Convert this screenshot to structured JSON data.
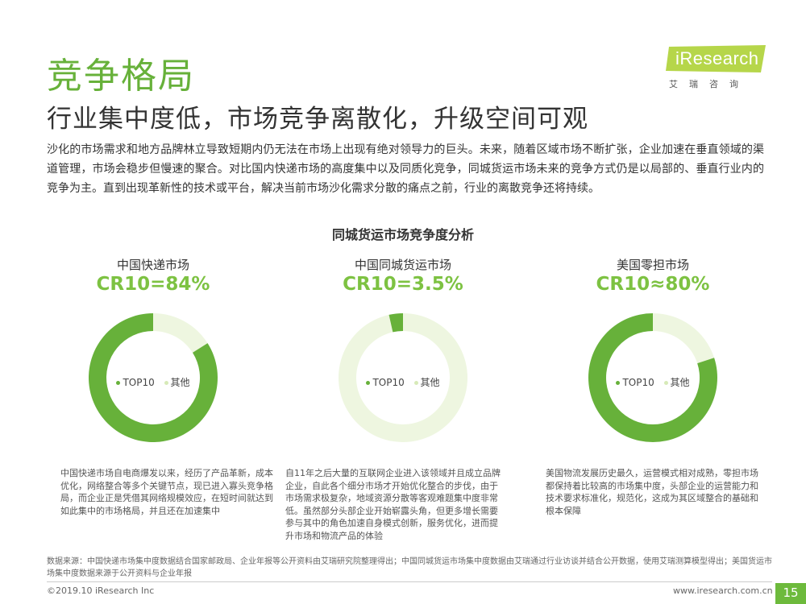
{
  "header": {
    "section_title": "竞争格局",
    "subtitle": "行业集中度低，市场竞争离散化，升级空间可观"
  },
  "logo": {
    "wordmark": "iResearch",
    "cn_name": "艾瑞咨询"
  },
  "intro": "沙化的市场需求和地方品牌林立导致短期内仍无法在市场上出现有绝对领导力的巨头。未来，随着区域市场不断扩张，企业加速在垂直领域的渠道管理，市场会稳步但慢速的聚合。对比国内快递市场的高度集中以及同质化竞争，同城货运市场未来的竞争方式仍是以局部的、垂直行业内的竞争为主。直到出现革新性的技术或平台，解决当前市场沙化需求分散的痛点之前，行业的离散竞争还将持续。",
  "chart_data": {
    "type": "pie",
    "title": "同城货运市场竞争度分析",
    "legend": [
      "TOP10",
      "其他"
    ],
    "colors": {
      "top10": "#67b13a",
      "others": "#eef6e0"
    },
    "charts": [
      {
        "name": "中国快递市场",
        "cr_label": "CR10=84%",
        "slices": [
          {
            "label": "TOP10",
            "value": 84
          },
          {
            "label": "其他",
            "value": 16
          }
        ],
        "note": "中国快递市场自电商爆发以来，经历了产品革新，成本优化，网络整合等多个关键节点，现已进入寡头竞争格局，而企业正是凭借其网络规模效应，在短时间就达到如此集中的市场格局，并且还在加速集中"
      },
      {
        "name": "中国同城货运市场",
        "cr_label": "CR10=3.5%",
        "slices": [
          {
            "label": "TOP10",
            "value": 3.5
          },
          {
            "label": "其他",
            "value": 96.5
          }
        ],
        "note": "自11年之后大量的互联网企业进入该领域并且成立品牌企业，自此各个细分市场才开始优化整合的步伐，由于市场需求极复杂，地域资源分散等客观难题集中度非常低。虽然部分头部企业开始崭露头角，但更多增长需要参与其中的角色加速自身模式创新，服务优化，进而提升市场和物流产品的体验"
      },
      {
        "name": "美国零担市场",
        "cr_label": "CR10≈80%",
        "slices": [
          {
            "label": "TOP10",
            "value": 80
          },
          {
            "label": "其他",
            "value": 20
          }
        ],
        "note": "美国物流发展历史最久，运营模式相对成熟，零担市场都保持着比较高的市场集中度，头部企业的运营能力和技术要求标准化，规范化，这成为其区域整合的基础和根本保障"
      }
    ]
  },
  "source": "数据来源：中国快递市场集中度数据结合国家邮政局、企业年报等公开资料由艾瑞研究院整理得出；中国同城货运市场集中度数据由艾瑞通过行业访谈并结合公开数据，使用艾瑞测算模型得出；美国货运市场集中度数据来源于公开资料与企业年报",
  "footer": {
    "copyright": "©2019.10 iResearch Inc",
    "website": "www.iresearch.com.cn",
    "page_number": "15"
  }
}
